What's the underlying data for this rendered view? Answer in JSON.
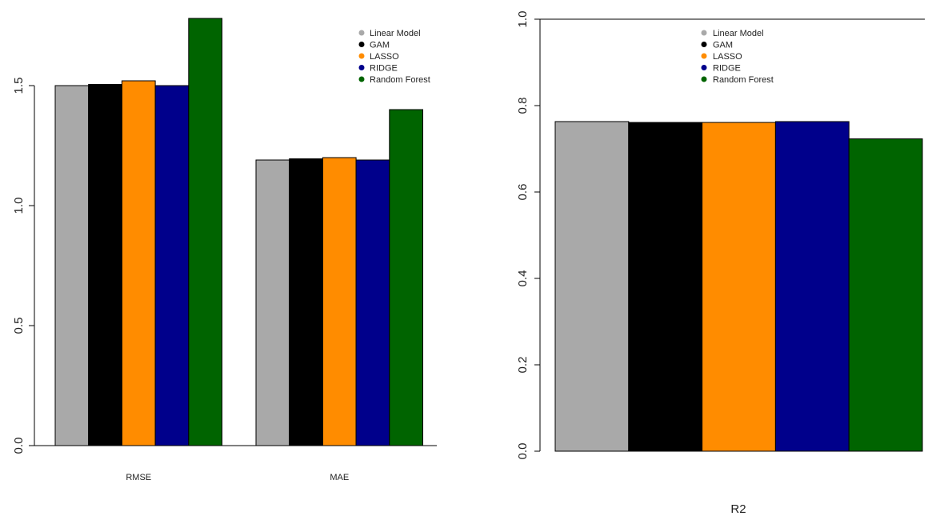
{
  "chart_data": [
    {
      "type": "bar",
      "categories": [
        "RMSE",
        "MAE"
      ],
      "series": [
        {
          "name": "Linear Model",
          "values": [
            1.5,
            1.19
          ]
        },
        {
          "name": "GAM",
          "values": [
            1.505,
            1.195
          ]
        },
        {
          "name": "LASSO",
          "values": [
            1.52,
            1.2
          ]
        },
        {
          "name": "RIDGE",
          "values": [
            1.5,
            1.19
          ]
        },
        {
          "name": "Random Forest",
          "values": [
            1.78,
            1.4
          ]
        }
      ],
      "yticks": [
        "0.0",
        "0.5",
        "1.0",
        "1.5"
      ],
      "ylim": [
        0,
        1.8
      ],
      "legend_position": "top-right",
      "axes_box": "left y-axis and bottom line only"
    },
    {
      "type": "bar",
      "categories": [
        "R2"
      ],
      "series": [
        {
          "name": "Linear Model",
          "values": [
            0.763
          ]
        },
        {
          "name": "GAM",
          "values": [
            0.761
          ]
        },
        {
          "name": "LASSO",
          "values": [
            0.761
          ]
        },
        {
          "name": "RIDGE",
          "values": [
            0.763
          ]
        },
        {
          "name": "Random Forest",
          "values": [
            0.723
          ]
        }
      ],
      "yticks": [
        "0.0",
        "0.2",
        "0.4",
        "0.6",
        "0.8",
        "1.0"
      ],
      "ylim": [
        0,
        1.0
      ],
      "legend_position": "top-center",
      "axes_box": "left y-axis and top line"
    }
  ],
  "series_colors": [
    "#a9a9a9",
    "#000000",
    "#ff8c00",
    "#00008b",
    "#006400"
  ]
}
